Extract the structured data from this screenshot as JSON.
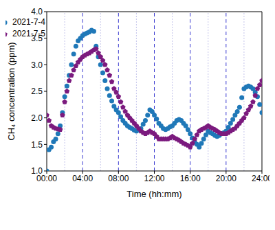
{
  "chart_data": {
    "type": "scatter",
    "x_label": "Time (hh:mm)",
    "y_label": "CH₄ concentration (ppm)",
    "x": [
      0,
      0.25,
      0.5,
      0.75,
      1,
      1.25,
      1.5,
      1.75,
      2,
      2.25,
      2.5,
      2.75,
      3,
      3.25,
      3.5,
      3.75,
      4,
      4.25,
      4.5,
      4.75,
      5,
      5.25,
      5.5,
      5.75,
      6,
      6.25,
      6.5,
      6.75,
      7,
      7.25,
      7.5,
      7.75,
      8,
      8.25,
      8.5,
      8.75,
      9,
      9.25,
      9.5,
      9.75,
      10,
      10.25,
      10.5,
      10.75,
      11,
      11.25,
      11.5,
      11.75,
      12,
      12.25,
      12.5,
      12.75,
      13,
      13.25,
      13.5,
      13.75,
      14,
      14.25,
      14.5,
      14.75,
      15,
      15.25,
      15.5,
      15.75,
      16,
      16.25,
      16.5,
      16.75,
      17,
      17.25,
      17.5,
      17.75,
      18,
      18.25,
      18.5,
      18.75,
      19,
      19.25,
      19.5,
      19.75,
      20,
      20.25,
      20.5,
      20.75,
      21,
      21.25,
      21.5,
      21.75,
      22,
      22.25,
      22.5,
      22.75,
      23,
      23.25,
      23.5,
      23.75,
      24
    ],
    "series": [
      {
        "name": "2021-7-4",
        "color": "#1f78b8",
        "marker": "circle",
        "values": [
          1.0,
          1.4,
          1.45,
          1.55,
          1.6,
          1.7,
          1.85,
          2.1,
          2.4,
          2.6,
          2.8,
          3.0,
          3.2,
          3.35,
          3.45,
          3.5,
          3.55,
          3.58,
          3.6,
          3.62,
          3.65,
          3.63,
          3.35,
          3.15,
          3.0,
          2.85,
          2.7,
          2.55,
          2.42,
          2.32,
          2.22,
          2.15,
          2.1,
          2.02,
          1.95,
          1.9,
          1.85,
          1.82,
          1.8,
          1.77,
          1.75,
          1.77,
          1.8,
          1.88,
          1.95,
          2.05,
          2.15,
          2.12,
          2.05,
          1.98,
          1.9,
          1.85,
          1.8,
          1.78,
          1.8,
          1.83,
          1.85,
          1.9,
          1.95,
          1.97,
          1.95,
          1.9,
          1.85,
          1.78,
          1.7,
          1.62,
          1.55,
          1.5,
          1.45,
          1.52,
          1.6,
          1.68,
          1.75,
          1.72,
          1.7,
          1.67,
          1.65,
          1.67,
          1.7,
          1.72,
          1.75,
          1.82,
          1.9,
          1.97,
          2.05,
          2.12,
          2.2,
          2.38,
          2.55,
          2.58,
          2.6,
          2.58,
          2.55,
          2.48,
          2.4,
          2.25,
          2.1
        ]
      },
      {
        "name": "2021-7-5",
        "color": "#7b1a7e",
        "marker": "pentagon",
        "values": [
          2.05,
          1.95,
          1.85,
          1.82,
          1.8,
          1.79,
          1.78,
          2.05,
          2.3,
          2.5,
          2.7,
          2.8,
          2.9,
          2.98,
          3.05,
          3.1,
          3.15,
          3.18,
          3.2,
          3.22,
          3.25,
          3.28,
          3.3,
          3.22,
          3.15,
          3.08,
          3.0,
          2.9,
          2.8,
          2.68,
          2.55,
          2.48,
          2.4,
          2.3,
          2.2,
          2.12,
          2.05,
          2.0,
          1.95,
          1.9,
          1.85,
          1.8,
          1.75,
          1.72,
          1.7,
          1.72,
          1.75,
          1.72,
          1.7,
          1.65,
          1.6,
          1.6,
          1.6,
          1.6,
          1.6,
          1.62,
          1.65,
          1.62,
          1.6,
          1.58,
          1.55,
          1.52,
          1.5,
          1.48,
          1.45,
          1.52,
          1.6,
          1.68,
          1.75,
          1.78,
          1.8,
          1.82,
          1.85,
          1.82,
          1.8,
          1.78,
          1.75,
          1.72,
          1.7,
          1.7,
          1.7,
          1.72,
          1.75,
          1.78,
          1.8,
          1.85,
          1.9,
          1.95,
          2.0,
          2.08,
          2.15,
          2.22,
          2.3,
          2.42,
          2.55,
          2.62,
          2.7
        ]
      }
    ],
    "xlim": [
      0,
      24
    ],
    "xticks": [
      {
        "value": 0,
        "label": "00:00"
      },
      {
        "value": 4,
        "label": "04:00"
      },
      {
        "value": 8,
        "label": "08:00"
      },
      {
        "value": 12,
        "label": "12:00"
      },
      {
        "value": 16,
        "label": "16:00"
      },
      {
        "value": 20,
        "label": "20:00"
      },
      {
        "value": 24,
        "label": "24:00"
      }
    ],
    "ylim": [
      1.0,
      4.0
    ],
    "yticks": [
      {
        "value": 1.0,
        "label": "1.0"
      },
      {
        "value": 1.5,
        "label": "1.5"
      },
      {
        "value": 2.0,
        "label": "2.0"
      },
      {
        "value": 2.5,
        "label": "2.5"
      },
      {
        "value": 3.0,
        "label": "3.0"
      },
      {
        "value": 3.5,
        "label": "3.5"
      },
      {
        "value": 4.0,
        "label": "4.0"
      }
    ],
    "grid": true,
    "legend": "upper right"
  }
}
